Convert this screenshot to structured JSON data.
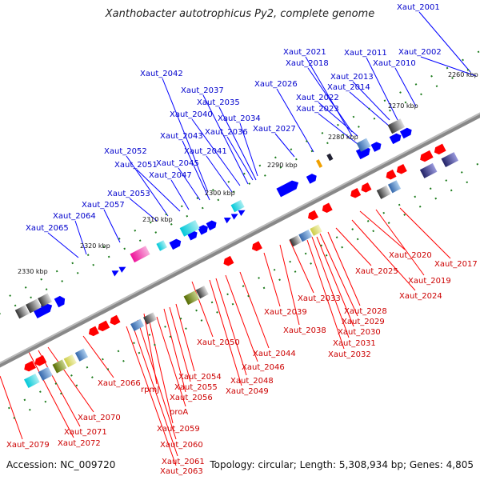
{
  "title": "Xanthobacter autotrophicus Py2, complete genome",
  "footer": {
    "accession": "Accession: NC_009720",
    "summary": "Topology: circular; Length: 5,308,934 bp; Genes: 4,805"
  },
  "colors": {
    "upper": "#0000ff",
    "lower": "#ff0000",
    "backbone": "#888888",
    "tick": "#1a7a1a"
  },
  "ticks": [
    "2260 kbp",
    "2270 kbp",
    "2280 kbp",
    "2290 kbp",
    "2300 kbp",
    "2310 kbp",
    "2320 kbp",
    "2330 kbp"
  ],
  "upper_labels": [
    "Xaut_2001",
    "Xaut_2002",
    "Xaut_2010",
    "Xaut_2011",
    "Xaut_2013",
    "Xaut_2014",
    "Xaut_2018",
    "Xaut_2021",
    "Xaut_2022",
    "Xaut_2023",
    "Xaut_2026",
    "Xaut_2027",
    "Xaut_2034",
    "Xaut_2035",
    "Xaut_2036",
    "Xaut_2037",
    "Xaut_2040",
    "Xaut_2041",
    "Xaut_2042",
    "Xaut_2043",
    "Xaut_2045",
    "Xaut_2047",
    "Xaut_2051",
    "Xaut_2052",
    "Xaut_2053",
    "Xaut_2057",
    "Xaut_2064",
    "Xaut_2065"
  ],
  "lower_labels": [
    "Xaut_2017",
    "Xaut_2019",
    "Xaut_2020",
    "Xaut_2024",
    "Xaut_2025",
    "Xaut_2028",
    "Xaut_2029",
    "Xaut_2030",
    "Xaut_2031",
    "Xaut_2032",
    "Xaut_2033",
    "Xaut_2038",
    "Xaut_2039",
    "Xaut_2044",
    "Xaut_2046",
    "Xaut_2048",
    "Xaut_2049",
    "Xaut_2050",
    "Xaut_2054",
    "Xaut_2055",
    "Xaut_2056",
    "rpmJ",
    "proA",
    "Xaut_2059",
    "Xaut_2060",
    "Xaut_2061",
    "Xaut_2063",
    "Xaut_2066",
    "Xaut_2070",
    "Xaut_2071",
    "Xaut_2072",
    "Xaut_2079"
  ]
}
